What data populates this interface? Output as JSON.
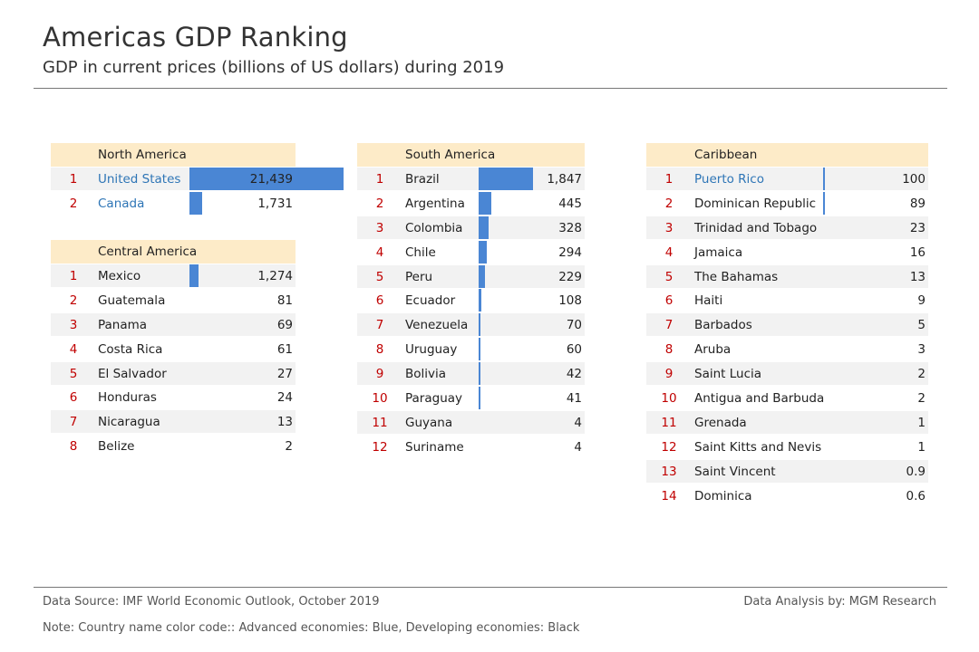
{
  "title": "Americas GDP Ranking",
  "subtitle": "GDP in current prices (billions of US dollars) during 2019",
  "footer": {
    "source": "Data Source: IMF World Economic Outlook, October 2019",
    "analysis": "Data Analysis by: MGM Research",
    "note": "Note: Country name color code:: Advanced economies: Blue, Developing economies: Black"
  },
  "colors": {
    "advanced": "#2e75b6",
    "developing": "#222222",
    "bar": "#4a86d4",
    "rank": "#c00000",
    "header_bg": "#fdebc8"
  },
  "chart_data": {
    "type": "table",
    "unit": "billions of US dollars",
    "regions": [
      {
        "name": "North America",
        "rows": [
          {
            "rank": "1",
            "country": "United States",
            "value": 21439,
            "label": "21,439",
            "advanced": true
          },
          {
            "rank": "2",
            "country": "Canada",
            "value": 1731,
            "label": "1,731",
            "advanced": true
          }
        ]
      },
      {
        "name": "Central America",
        "rows": [
          {
            "rank": "1",
            "country": "Mexico",
            "value": 1274,
            "label": "1,274",
            "advanced": false
          },
          {
            "rank": "2",
            "country": "Guatemala",
            "value": 81,
            "label": "81",
            "advanced": false
          },
          {
            "rank": "3",
            "country": "Panama",
            "value": 69,
            "label": "69",
            "advanced": false
          },
          {
            "rank": "4",
            "country": "Costa Rica",
            "value": 61,
            "label": "61",
            "advanced": false
          },
          {
            "rank": "5",
            "country": "El Salvador",
            "value": 27,
            "label": "27",
            "advanced": false
          },
          {
            "rank": "6",
            "country": "Honduras",
            "value": 24,
            "label": "24",
            "advanced": false
          },
          {
            "rank": "7",
            "country": "Nicaragua",
            "value": 13,
            "label": "13",
            "advanced": false
          },
          {
            "rank": "8",
            "country": "Belize",
            "value": 2,
            "label": "2",
            "advanced": false
          }
        ]
      },
      {
        "name": "South America",
        "rows": [
          {
            "rank": "1",
            "country": "Brazil",
            "value": 1847,
            "label": "1,847",
            "advanced": false
          },
          {
            "rank": "2",
            "country": "Argentina",
            "value": 445,
            "label": "445",
            "advanced": false
          },
          {
            "rank": "3",
            "country": "Colombia",
            "value": 328,
            "label": "328",
            "advanced": false
          },
          {
            "rank": "4",
            "country": "Chile",
            "value": 294,
            "label": "294",
            "advanced": false
          },
          {
            "rank": "5",
            "country": "Peru",
            "value": 229,
            "label": "229",
            "advanced": false
          },
          {
            "rank": "6",
            "country": "Ecuador",
            "value": 108,
            "label": "108",
            "advanced": false
          },
          {
            "rank": "7",
            "country": "Venezuela",
            "value": 70,
            "label": "70",
            "advanced": false
          },
          {
            "rank": "8",
            "country": "Uruguay",
            "value": 60,
            "label": "60",
            "advanced": false
          },
          {
            "rank": "9",
            "country": "Bolivia",
            "value": 42,
            "label": "42",
            "advanced": false
          },
          {
            "rank": "10",
            "country": "Paraguay",
            "value": 41,
            "label": "41",
            "advanced": false
          },
          {
            "rank": "11",
            "country": "Guyana",
            "value": 4,
            "label": "4",
            "advanced": false
          },
          {
            "rank": "12",
            "country": "Suriname",
            "value": 4,
            "label": "4",
            "advanced": false
          }
        ]
      },
      {
        "name": "Caribbean",
        "rows": [
          {
            "rank": "1",
            "country": "Puerto Rico",
            "value": 100,
            "label": "100",
            "advanced": true
          },
          {
            "rank": "2",
            "country": "Dominican Republic",
            "value": 89,
            "label": "89",
            "advanced": false
          },
          {
            "rank": "3",
            "country": "Trinidad and Tobago",
            "value": 23,
            "label": "23",
            "advanced": false
          },
          {
            "rank": "4",
            "country": "Jamaica",
            "value": 16,
            "label": "16",
            "advanced": false
          },
          {
            "rank": "5",
            "country": "The Bahamas",
            "value": 13,
            "label": "13",
            "advanced": false
          },
          {
            "rank": "6",
            "country": "Haiti",
            "value": 9,
            "label": "9",
            "advanced": false
          },
          {
            "rank": "7",
            "country": "Barbados",
            "value": 5,
            "label": "5",
            "advanced": false
          },
          {
            "rank": "8",
            "country": "Aruba",
            "value": 3,
            "label": "3",
            "advanced": false
          },
          {
            "rank": "9",
            "country": "Saint Lucia",
            "value": 2,
            "label": "2",
            "advanced": false
          },
          {
            "rank": "10",
            "country": "Antigua and Barbuda",
            "value": 2,
            "label": "2",
            "advanced": false
          },
          {
            "rank": "11",
            "country": "Grenada",
            "value": 1,
            "label": "1",
            "advanced": false
          },
          {
            "rank": "12",
            "country": "Saint Kitts and Nevis",
            "value": 1,
            "label": "1",
            "advanced": false
          },
          {
            "rank": "13",
            "country": "Saint Vincent",
            "value": 0.9,
            "label": "0.9",
            "advanced": false
          },
          {
            "rank": "14",
            "country": "Dominica",
            "value": 0.6,
            "label": "0.6",
            "advanced": false
          }
        ]
      }
    ]
  }
}
